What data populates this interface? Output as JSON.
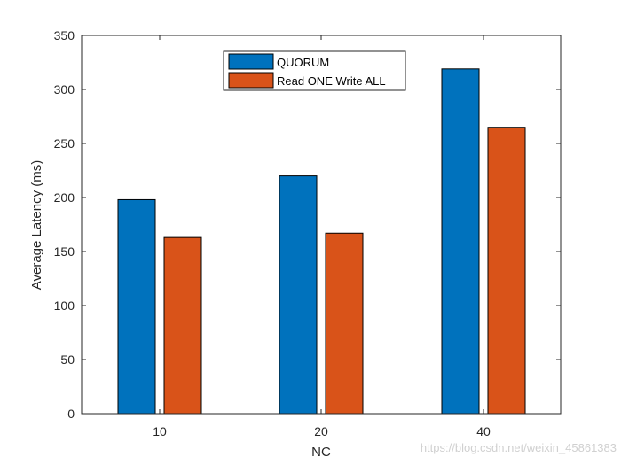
{
  "chart_data": {
    "type": "bar",
    "categories": [
      "10",
      "20",
      "40"
    ],
    "series": [
      {
        "name": "QUORUM",
        "values": [
          198,
          220,
          319
        ],
        "color": "#0072BD"
      },
      {
        "name": "Read ONE Write ALL",
        "values": [
          163,
          167,
          265
        ],
        "color": "#D95319"
      }
    ],
    "xlabel": "NC",
    "ylabel": "Average Latency (ms)",
    "ylim": [
      0,
      350
    ],
    "yticks": [
      "0",
      "50",
      "100",
      "150",
      "200",
      "250",
      "300",
      "350"
    ],
    "grid": false,
    "legend_position": "top-center"
  },
  "watermark": "https://blog.csdn.net/weixin_45861383"
}
